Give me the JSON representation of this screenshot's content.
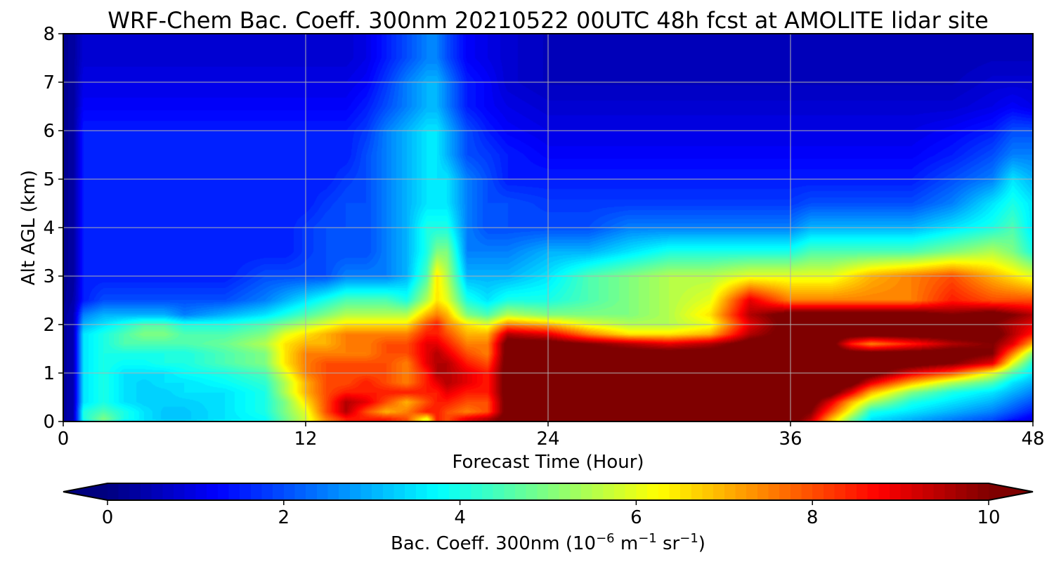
{
  "chart_data": {
    "type": "heatmap",
    "subtype": "filled-contour",
    "title": "WRF-Chem Bac. Coeff. 300nm  20210522 00UTC 48h fcst at AMOLITE lidar site",
    "xlabel": "Forecast Time (Hour)",
    "ylabel": "Alt AGL (km)",
    "xlim": [
      0,
      48
    ],
    "ylim": [
      0,
      8
    ],
    "x_ticks": [
      0,
      12,
      24,
      36,
      48
    ],
    "y_ticks": [
      0,
      1,
      2,
      3,
      4,
      5,
      6,
      7,
      8
    ],
    "grid": true,
    "colormap": "jet",
    "colorbar": {
      "orientation": "horizontal",
      "placement": "bottom",
      "range": [
        0,
        10
      ],
      "extend": "both",
      "ticks": [
        0,
        2,
        4,
        6,
        8,
        10
      ],
      "label_main": "Bac. Coeff. 300nm  (10",
      "label_exp1": "−6",
      "label_unit1": " m",
      "label_exp2": "−1",
      "label_unit2": " sr",
      "label_exp3": "−1",
      "label_close": ")"
    },
    "field_x": [
      0,
      0.5,
      1,
      2,
      3,
      4,
      5,
      6,
      8,
      10,
      11,
      12,
      13,
      14,
      15,
      16,
      17,
      18,
      18.5,
      19,
      20,
      21,
      22,
      24,
      26,
      28,
      30,
      32,
      34,
      36,
      37,
      38,
      39,
      40,
      42,
      44,
      46,
      47,
      48
    ],
    "field_y": [
      0,
      0.05,
      0.2,
      0.4,
      0.6,
      0.8,
      1.0,
      1.2,
      1.4,
      1.6,
      1.8,
      2.0,
      2.2,
      2.5,
      3.0,
      3.5,
      4.0,
      4.5,
      5.0,
      5.5,
      6.0,
      6.5,
      7.0,
      7.5,
      8.0
    ],
    "field_values": [
      [
        0.3,
        0.6,
        3.5,
        4.5,
        3.5,
        3.5,
        3.5,
        3.5,
        3.8,
        4.0,
        5.0,
        6.0,
        7.5,
        8.5,
        8.5,
        8.5,
        8.0,
        6.0,
        8.5,
        8.0,
        9.0,
        9.5,
        10.5,
        10.5,
        9.5,
        10.5,
        10.5,
        10.5,
        10.5,
        10.5,
        9.0,
        7.0,
        5.0,
        3.5,
        3.0,
        2.5,
        2.0,
        1.0,
        0.8
      ],
      [
        0.3,
        0.5,
        4.0,
        5.0,
        4.0,
        3.5,
        3.2,
        3.2,
        3.5,
        3.8,
        4.8,
        5.8,
        7.5,
        8.5,
        8.5,
        8.5,
        8.0,
        6.0,
        8.5,
        8.0,
        9.0,
        9.5,
        10.5,
        10.5,
        10.5,
        10.5,
        10.5,
        10.5,
        10.5,
        10.5,
        9.5,
        7.0,
        5.0,
        3.5,
        3.0,
        2.5,
        2.0,
        1.5,
        1.0
      ],
      [
        0.3,
        0.5,
        4.0,
        4.5,
        4.0,
        3.5,
        3.2,
        3.2,
        3.5,
        4.0,
        5.0,
        6.0,
        8.0,
        9.5,
        8.0,
        7.0,
        7.5,
        8.5,
        8.5,
        8.0,
        7.5,
        8.0,
        10.5,
        10.5,
        10.5,
        10.5,
        10.5,
        10.5,
        10.5,
        10.5,
        10.0,
        8.0,
        6.0,
        4.0,
        3.5,
        3.0,
        2.5,
        2.0,
        1.5
      ],
      [
        0.3,
        0.5,
        3.5,
        4.0,
        3.5,
        3.3,
        3.3,
        3.3,
        3.5,
        4.0,
        5.0,
        6.5,
        8.0,
        9.5,
        9.0,
        8.0,
        7.0,
        8.0,
        8.5,
        8.5,
        8.0,
        8.0,
        10.5,
        10.5,
        10.5,
        10.5,
        10.5,
        10.5,
        10.5,
        10.5,
        10.5,
        9.0,
        7.0,
        5.5,
        4.0,
        3.5,
        3.0,
        2.5,
        2.0
      ],
      [
        0.3,
        0.5,
        3.5,
        4.0,
        3.5,
        3.3,
        3.3,
        3.5,
        3.5,
        4.0,
        5.5,
        7.0,
        8.0,
        8.5,
        8.5,
        8.5,
        8.5,
        8.5,
        8.5,
        9.0,
        8.5,
        8.5,
        10.5,
        10.5,
        10.5,
        10.5,
        10.5,
        10.5,
        10.5,
        10.5,
        10.5,
        10.5,
        9.0,
        7.0,
        5.0,
        4.0,
        3.5,
        3.0,
        2.5
      ],
      [
        0.3,
        0.5,
        3.5,
        4.0,
        3.5,
        3.3,
        3.5,
        3.5,
        3.8,
        4.2,
        5.5,
        7.0,
        8.0,
        8.0,
        8.5,
        8.0,
        7.5,
        8.5,
        9.0,
        9.5,
        9.0,
        8.5,
        10.5,
        10.5,
        10.5,
        10.5,
        10.5,
        10.5,
        10.5,
        10.5,
        10.5,
        10.5,
        10.5,
        9.0,
        7.0,
        5.5,
        4.5,
        3.5,
        3.0
      ],
      [
        0.3,
        0.5,
        3.5,
        4.0,
        3.5,
        3.5,
        3.5,
        3.8,
        4.0,
        4.5,
        6.0,
        7.5,
        8.0,
        8.0,
        8.0,
        8.0,
        7.5,
        8.5,
        9.5,
        9.5,
        9.0,
        8.5,
        10.5,
        10.5,
        10.5,
        10.5,
        10.5,
        10.5,
        10.5,
        10.5,
        10.5,
        10.5,
        10.5,
        10.5,
        9.0,
        8.0,
        6.0,
        4.5,
        3.5
      ],
      [
        0.3,
        0.5,
        3.5,
        4.0,
        3.8,
        3.8,
        4.0,
        4.0,
        4.5,
        5.0,
        6.5,
        7.5,
        8.0,
        8.0,
        8.0,
        8.0,
        7.5,
        9.0,
        9.5,
        9.5,
        8.5,
        8.0,
        10.5,
        10.5,
        10.5,
        10.5,
        10.5,
        10.5,
        10.5,
        10.5,
        10.5,
        10.5,
        10.5,
        10.5,
        10.5,
        10.0,
        9.0,
        6.0,
        4.0
      ],
      [
        0.3,
        0.5,
        3.5,
        4.0,
        4.0,
        4.0,
        4.0,
        4.0,
        4.5,
        5.0,
        6.5,
        7.5,
        7.5,
        7.5,
        7.5,
        8.0,
        8.0,
        9.0,
        9.5,
        9.0,
        8.0,
        7.5,
        10.5,
        10.5,
        10.5,
        10.5,
        10.5,
        10.5,
        10.5,
        10.5,
        10.5,
        10.5,
        10.5,
        10.5,
        10.5,
        10.5,
        10.0,
        7.5,
        5.0
      ],
      [
        0.3,
        0.5,
        3.5,
        4.0,
        4.5,
        4.5,
        4.5,
        4.5,
        4.8,
        5.5,
        6.5,
        7.0,
        7.0,
        7.5,
        7.5,
        8.0,
        8.0,
        9.0,
        9.0,
        8.5,
        7.5,
        7.5,
        10.5,
        10.5,
        10.0,
        9.5,
        9.0,
        9.5,
        10.5,
        10.5,
        10.5,
        10.5,
        8.5,
        7.5,
        8.5,
        9.5,
        10.0,
        9.0,
        7.0
      ],
      [
        0.3,
        0.5,
        3.5,
        4.0,
        4.5,
        5.0,
        5.0,
        4.5,
        4.5,
        5.0,
        6.0,
        6.5,
        7.0,
        7.5,
        7.5,
        7.5,
        7.5,
        8.5,
        8.5,
        8.0,
        7.0,
        7.0,
        9.5,
        9.0,
        7.5,
        6.5,
        6.5,
        7.0,
        9.5,
        10.5,
        10.5,
        10.5,
        10.5,
        10.5,
        10.5,
        10.5,
        10.5,
        9.5,
        8.5
      ],
      [
        0.3,
        0.5,
        3.0,
        3.5,
        4.0,
        4.5,
        4.5,
        4.0,
        4.0,
        4.5,
        5.0,
        5.5,
        6.0,
        6.5,
        6.5,
        6.5,
        6.5,
        8.0,
        8.5,
        7.5,
        6.5,
        6.0,
        7.5,
        7.0,
        6.0,
        5.5,
        5.5,
        6.0,
        9.0,
        10.5,
        10.5,
        10.5,
        10.5,
        10.5,
        10.5,
        10.5,
        10.0,
        9.5,
        9.0
      ],
      [
        0.3,
        0.5,
        2.5,
        3.0,
        3.0,
        3.0,
        3.0,
        2.5,
        3.0,
        3.5,
        4.0,
        4.5,
        5.0,
        5.5,
        5.5,
        5.5,
        5.5,
        7.0,
        7.5,
        7.0,
        5.0,
        4.5,
        5.5,
        5.0,
        5.0,
        5.0,
        5.5,
        6.5,
        9.5,
        10.5,
        10.5,
        10.5,
        10.5,
        10.5,
        10.5,
        10.0,
        10.5,
        10.0,
        9.5
      ],
      [
        0.2,
        0.4,
        1.5,
        2.0,
        2.0,
        2.0,
        2.0,
        2.0,
        2.0,
        2.5,
        3.0,
        3.5,
        4.0,
        4.5,
        4.5,
        4.5,
        4.0,
        5.5,
        6.5,
        6.0,
        4.0,
        3.5,
        4.0,
        4.0,
        4.5,
        5.0,
        5.5,
        6.0,
        9.0,
        7.5,
        7.5,
        7.5,
        7.5,
        7.5,
        7.5,
        8.5,
        8.0,
        8.0,
        8.0
      ],
      [
        0.2,
        0.3,
        1.5,
        1.5,
        1.5,
        1.5,
        1.5,
        1.5,
        1.5,
        2.0,
        2.0,
        2.0,
        2.0,
        2.5,
        2.5,
        2.5,
        3.0,
        4.5,
        6.5,
        5.5,
        3.0,
        3.0,
        3.0,
        3.5,
        4.5,
        5.0,
        5.5,
        5.5,
        6.0,
        6.0,
        6.0,
        6.0,
        6.5,
        7.0,
        7.5,
        8.0,
        7.0,
        6.5,
        6.0
      ],
      [
        0.2,
        0.3,
        1.5,
        1.5,
        1.5,
        1.5,
        1.5,
        1.5,
        1.5,
        1.5,
        1.5,
        1.8,
        2.0,
        2.0,
        2.0,
        2.5,
        3.0,
        4.0,
        5.0,
        5.0,
        2.5,
        2.5,
        2.5,
        3.0,
        3.0,
        3.5,
        4.0,
        4.0,
        4.0,
        4.0,
        4.5,
        4.5,
        4.5,
        4.5,
        4.5,
        5.0,
        5.5,
        5.0,
        4.0
      ],
      [
        0.2,
        0.3,
        1.5,
        1.5,
        1.5,
        1.5,
        1.5,
        1.5,
        1.5,
        1.5,
        1.5,
        1.8,
        2.0,
        2.0,
        2.0,
        2.5,
        3.0,
        4.0,
        4.0,
        4.0,
        2.5,
        2.0,
        2.0,
        2.0,
        2.0,
        2.5,
        2.5,
        2.5,
        2.5,
        2.5,
        3.0,
        3.0,
        3.0,
        3.0,
        3.0,
        3.5,
        4.0,
        4.5,
        3.5
      ],
      [
        0.2,
        0.3,
        1.5,
        1.5,
        1.5,
        1.5,
        1.5,
        1.5,
        1.5,
        1.5,
        1.5,
        1.5,
        1.8,
        2.0,
        2.0,
        2.5,
        3.0,
        3.5,
        3.5,
        3.5,
        2.5,
        2.0,
        2.0,
        1.8,
        1.8,
        1.8,
        1.8,
        1.8,
        1.8,
        1.8,
        2.0,
        2.0,
        2.0,
        2.0,
        2.0,
        2.5,
        3.5,
        4.0,
        3.5
      ],
      [
        0.2,
        0.3,
        1.5,
        1.5,
        1.5,
        1.5,
        1.5,
        1.5,
        1.5,
        1.5,
        1.5,
        1.5,
        1.5,
        1.8,
        2.0,
        2.5,
        3.0,
        3.5,
        3.5,
        3.5,
        2.5,
        2.0,
        1.5,
        1.5,
        1.5,
        1.5,
        1.5,
        1.5,
        1.5,
        1.5,
        1.5,
        1.5,
        1.5,
        1.5,
        1.5,
        2.0,
        2.5,
        3.5,
        3.0
      ],
      [
        0.2,
        0.3,
        1.5,
        1.5,
        1.5,
        1.5,
        1.5,
        1.5,
        1.5,
        1.5,
        1.5,
        1.5,
        1.5,
        1.5,
        2.0,
        2.5,
        3.0,
        3.5,
        3.5,
        3.0,
        2.0,
        1.8,
        1.5,
        1.2,
        1.2,
        1.2,
        1.2,
        1.2,
        1.2,
        1.2,
        1.2,
        1.2,
        1.2,
        1.2,
        1.2,
        1.5,
        2.0,
        2.5,
        2.5
      ],
      [
        0.2,
        0.3,
        1.5,
        1.5,
        1.5,
        1.5,
        1.5,
        1.5,
        1.5,
        1.5,
        1.5,
        1.5,
        1.5,
        1.5,
        1.8,
        2.5,
        3.0,
        3.5,
        3.5,
        3.0,
        2.0,
        1.5,
        1.2,
        1.0,
        1.0,
        1.0,
        1.0,
        1.0,
        1.0,
        1.0,
        1.0,
        1.0,
        1.0,
        1.0,
        1.0,
        1.2,
        1.5,
        2.0,
        2.0
      ],
      [
        0.2,
        0.3,
        1.2,
        1.2,
        1.2,
        1.2,
        1.2,
        1.2,
        1.2,
        1.2,
        1.2,
        1.2,
        1.2,
        1.2,
        1.5,
        2.0,
        2.5,
        3.0,
        3.0,
        2.5,
        1.5,
        1.2,
        1.0,
        0.8,
        0.8,
        0.8,
        0.8,
        0.8,
        0.8,
        0.8,
        0.8,
        0.8,
        0.8,
        0.8,
        0.8,
        0.8,
        1.0,
        1.2,
        1.0
      ],
      [
        0.2,
        0.3,
        1.0,
        1.0,
        1.0,
        1.0,
        1.0,
        1.0,
        1.0,
        1.0,
        1.0,
        1.0,
        1.0,
        1.0,
        1.2,
        1.8,
        2.5,
        3.0,
        3.0,
        2.5,
        1.5,
        1.2,
        0.8,
        0.6,
        0.6,
        0.6,
        0.6,
        0.6,
        0.6,
        0.6,
        0.6,
        0.6,
        0.6,
        0.6,
        0.6,
        0.6,
        0.8,
        0.8,
        0.8
      ],
      [
        0.2,
        0.3,
        0.8,
        0.8,
        0.8,
        0.8,
        0.8,
        0.8,
        0.8,
        0.8,
        0.8,
        0.8,
        0.8,
        0.8,
        1.0,
        1.5,
        2.0,
        2.5,
        2.5,
        2.0,
        1.2,
        1.0,
        0.8,
        0.6,
        0.5,
        0.5,
        0.5,
        0.5,
        0.5,
        0.5,
        0.5,
        0.5,
        0.5,
        0.5,
        0.5,
        0.5,
        0.6,
        0.6,
        0.6
      ],
      [
        0.2,
        0.3,
        0.8,
        0.8,
        0.8,
        0.8,
        0.8,
        0.8,
        0.8,
        0.8,
        0.8,
        0.8,
        0.8,
        0.8,
        1.0,
        1.5,
        2.0,
        2.5,
        2.5,
        2.0,
        1.2,
        1.0,
        0.8,
        0.6,
        0.5,
        0.5,
        0.5,
        0.5,
        0.5,
        0.5,
        0.5,
        0.5,
        0.5,
        0.5,
        0.5,
        0.5,
        0.6,
        0.6,
        0.6
      ]
    ]
  }
}
